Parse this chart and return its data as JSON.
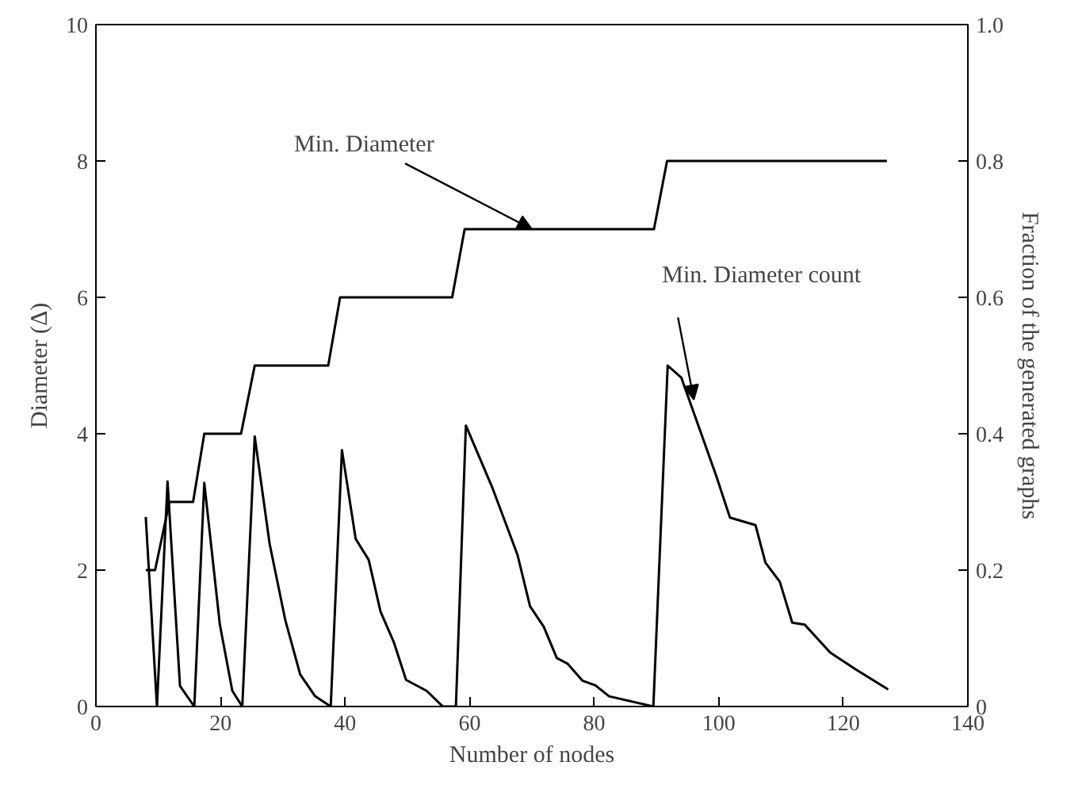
{
  "chart_data": {
    "type": "line",
    "xlabel": "Number of nodes",
    "ylabel": "Diameter (Δ)",
    "y2label": "Fraction of the generated graphs",
    "xlim": [
      0,
      140
    ],
    "xticks": [
      0,
      20,
      40,
      60,
      80,
      100,
      120,
      140
    ],
    "ylim": [
      0,
      10
    ],
    "yticks": [
      0,
      2,
      4,
      6,
      8,
      10
    ],
    "y2lim": [
      0,
      1.0
    ],
    "y2ticks": [
      {
        "value": 0,
        "label": "0"
      },
      {
        "value": 0.2,
        "label": "0.2"
      },
      {
        "value": 0.4,
        "label": "0.4"
      },
      {
        "value": 0.6,
        "label": "0.6"
      },
      {
        "value": 0.8,
        "label": "0.8"
      },
      {
        "value": 1.0,
        "label": "1.0"
      }
    ],
    "grid": false,
    "marker": "none",
    "line_style": "solid",
    "series": [
      {
        "color": "#000000",
        "x": [
          8,
          9.5,
          11.8,
          15.6,
          17.4,
          23.3,
          25.5,
          37.3,
          39.2,
          57.2,
          59.2,
          89.6,
          91.7,
          127
        ],
        "values": [
          2,
          2,
          3,
          3,
          4,
          4,
          5,
          5,
          6,
          6,
          7,
          7,
          8,
          8
        ]
      },
      {
        "color": "#000000",
        "axis": "y2",
        "x": [
          8,
          9.8,
          11.5,
          13.5,
          15.8,
          17.4,
          19.9,
          21.9,
          23.5,
          25.5,
          27.9,
          30.4,
          32.8,
          35.2,
          37.7,
          39.5,
          41.7,
          43.8,
          45.7,
          47.8,
          49.8,
          53.1,
          55.7,
          57.8,
          59.4,
          63.6,
          67.7,
          69.7,
          71.9,
          74.0,
          75.7,
          78.1,
          80.2,
          82.4,
          89.5,
          91.8,
          94.0,
          99.6,
          101.8,
          105.9,
          107.5,
          109.8,
          111.8,
          113.8,
          117.9,
          121.9,
          127.2
        ],
        "values": [
          0.278,
          0,
          0.33,
          0.03,
          0,
          0.328,
          0.12,
          0.023,
          0,
          0.396,
          0.238,
          0.127,
          0.047,
          0.015,
          0,
          0.376,
          0.246,
          0.215,
          0.139,
          0.095,
          0.039,
          0.023,
          0,
          0,
          0.412,
          0.322,
          0.222,
          0.147,
          0.117,
          0.071,
          0.063,
          0.038,
          0.031,
          0.015,
          0,
          0.5,
          0.482,
          0.338,
          0.277,
          0.266,
          0.211,
          0.183,
          0.123,
          0.12,
          0.079,
          0.055,
          0.025
        ]
      }
    ],
    "annotations": [
      {
        "text": "Min. Diameter",
        "x": 70,
        "y": 7
      },
      {
        "text": "Min. Diameter count",
        "x": 96,
        "y": 4.5
      }
    ]
  }
}
